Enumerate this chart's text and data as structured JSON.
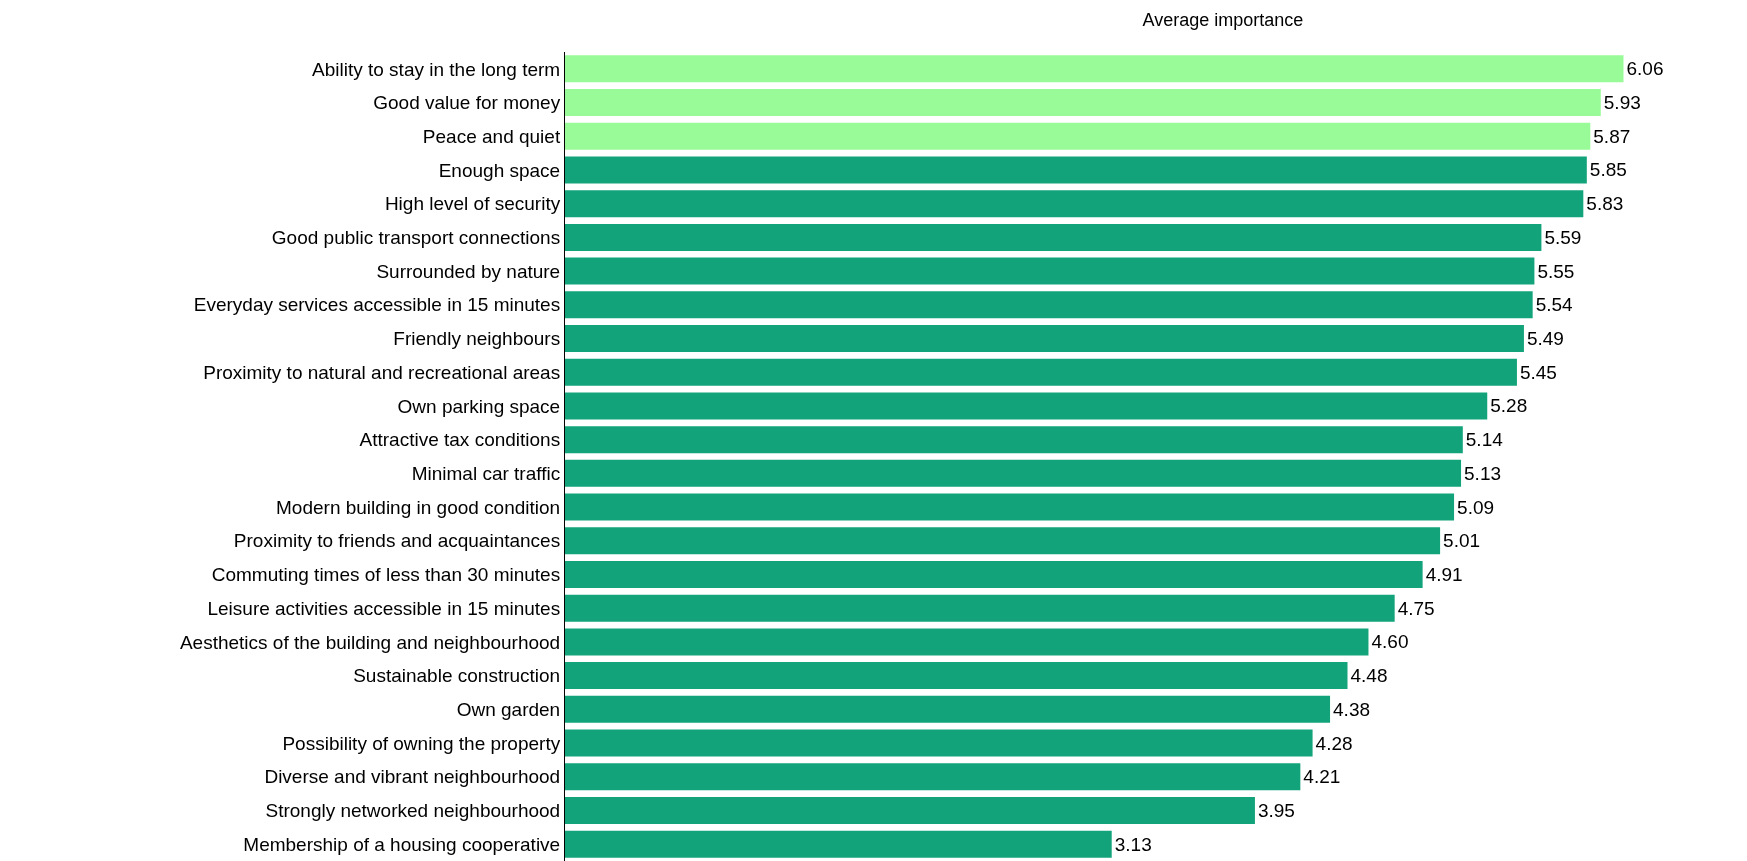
{
  "chart_data": {
    "type": "bar",
    "orientation": "horizontal",
    "title": "Average importance",
    "categories": [
      "Ability to stay in the long term",
      "Good value for money",
      "Peace and quiet",
      "Enough space",
      "High level of security",
      "Good public transport connections",
      "Surrounded by nature",
      "Everyday services accessible in 15 minutes",
      "Friendly neighbours",
      "Proximity to natural and recreational areas",
      "Own parking space",
      "Attractive tax conditions",
      "Minimal car traffic",
      "Modern building in good condition",
      "Proximity to friends and acquaintances",
      "Commuting times of less than 30 minutes",
      "Leisure activities accessible in 15 minutes",
      "Aesthetics of the building and neighbourhood",
      "Sustainable construction",
      "Own garden",
      "Possibility of owning the property",
      "Diverse and vibrant neighbourhood",
      "Strongly networked neighbourhood",
      "Membership of a housing cooperative"
    ],
    "values": [
      6.06,
      5.93,
      5.87,
      5.85,
      5.83,
      5.59,
      5.55,
      5.54,
      5.49,
      5.45,
      5.28,
      5.14,
      5.13,
      5.09,
      5.01,
      4.91,
      4.75,
      4.6,
      4.48,
      4.38,
      4.28,
      4.21,
      3.95,
      3.13
    ],
    "value_labels": [
      "6.06",
      "5.93",
      "5.87",
      "5.85",
      "5.83",
      "5.59",
      "5.55",
      "5.54",
      "5.49",
      "5.45",
      "5.28",
      "5.14",
      "5.13",
      "5.09",
      "5.01",
      "4.91",
      "4.75",
      "4.60",
      "4.48",
      "4.38",
      "4.28",
      "4.21",
      "3.95",
      "3.13"
    ],
    "colors": [
      "#98fb98",
      "#98fb98",
      "#98fb98",
      "#12a37a",
      "#12a37a",
      "#12a37a",
      "#12a37a",
      "#12a37a",
      "#12a37a",
      "#12a37a",
      "#12a37a",
      "#12a37a",
      "#12a37a",
      "#12a37a",
      "#12a37a",
      "#12a37a",
      "#12a37a",
      "#12a37a",
      "#12a37a",
      "#12a37a",
      "#12a37a",
      "#12a37a",
      "#12a37a",
      "#12a37a"
    ],
    "legend": false
  }
}
